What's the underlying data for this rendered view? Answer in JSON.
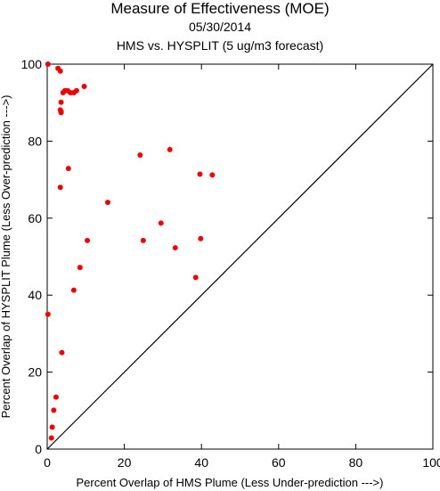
{
  "chart_data": {
    "type": "scatter",
    "title": "Measure of Effectiveness (MOE)",
    "date": "05/30/2014",
    "subtitle": "HMS vs. HYSPLIT  (5 ug/m3 forecast)",
    "xlabel": "Percent Overlap of HMS Plume (Less Under-prediction --->)",
    "ylabel": "Percent Overlap of HYSPLIT Plume (Less Over-prediction --->)",
    "xlim": [
      0,
      100
    ],
    "ylim": [
      0,
      100
    ],
    "xticks": [
      "0",
      "20",
      "40",
      "60",
      "80",
      "100"
    ],
    "yticks": [
      "0",
      "20",
      "40",
      "60",
      "80",
      "100"
    ],
    "reference_line": "y = x",
    "point_color": "#ee0000",
    "points": [
      {
        "x": 0.2,
        "y": 100
      },
      {
        "x": 2.8,
        "y": 98.9
      },
      {
        "x": 3.4,
        "y": 98.2
      },
      {
        "x": 9.6,
        "y": 94.2
      },
      {
        "x": 4.1,
        "y": 92.6
      },
      {
        "x": 4.6,
        "y": 93.1
      },
      {
        "x": 5.3,
        "y": 93.1
      },
      {
        "x": 6.0,
        "y": 92.6
      },
      {
        "x": 6.9,
        "y": 92.6
      },
      {
        "x": 7.6,
        "y": 93.1
      },
      {
        "x": 3.6,
        "y": 90.1
      },
      {
        "x": 3.4,
        "y": 88.1
      },
      {
        "x": 3.6,
        "y": 87.4
      },
      {
        "x": 3.6,
        "y": 87.7
      },
      {
        "x": 24.1,
        "y": 76.4
      },
      {
        "x": 31.8,
        "y": 77.8
      },
      {
        "x": 5.5,
        "y": 72.9
      },
      {
        "x": 39.6,
        "y": 71.4
      },
      {
        "x": 42.8,
        "y": 71.2
      },
      {
        "x": 3.4,
        "y": 68.0
      },
      {
        "x": 15.7,
        "y": 64.1
      },
      {
        "x": 29.5,
        "y": 58.7
      },
      {
        "x": 10.4,
        "y": 54.2
      },
      {
        "x": 24.9,
        "y": 54.2
      },
      {
        "x": 39.8,
        "y": 54.7
      },
      {
        "x": 33.2,
        "y": 52.3
      },
      {
        "x": 8.5,
        "y": 47.2
      },
      {
        "x": 38.5,
        "y": 44.6
      },
      {
        "x": 6.9,
        "y": 41.3
      },
      {
        "x": 0.2,
        "y": 35.0
      },
      {
        "x": 3.8,
        "y": 25.1
      },
      {
        "x": 2.3,
        "y": 13.5
      },
      {
        "x": 1.7,
        "y": 10.1
      },
      {
        "x": 1.3,
        "y": 5.7
      },
      {
        "x": 1.1,
        "y": 2.9
      }
    ]
  }
}
